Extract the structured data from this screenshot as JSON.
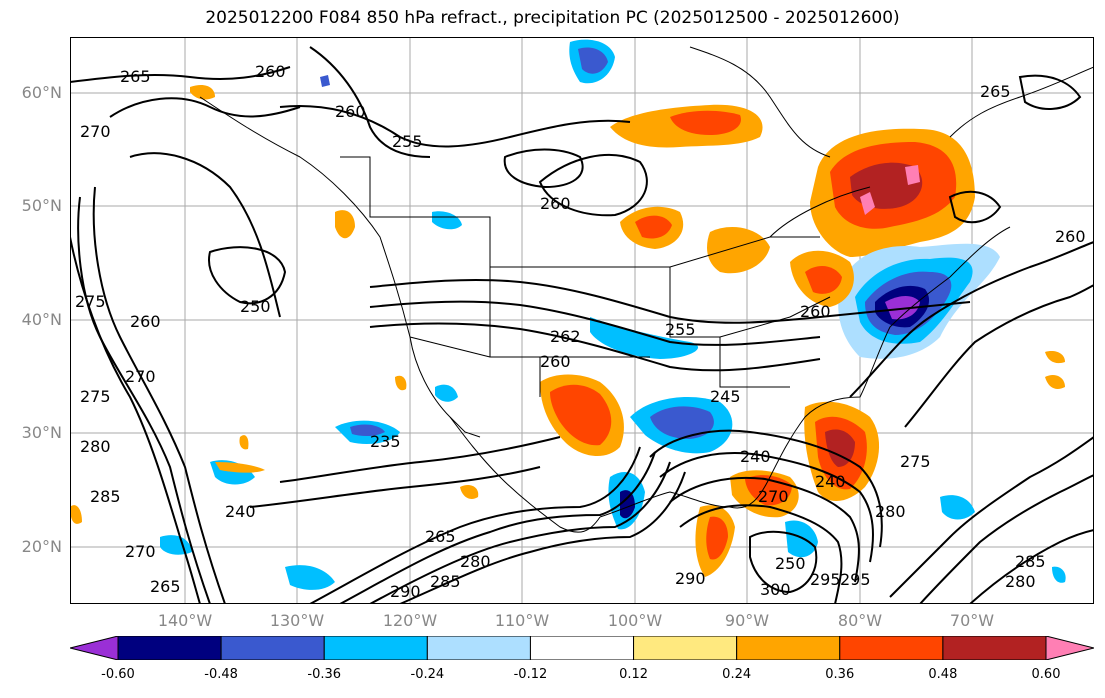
{
  "title": "2025012200 F084 850 hPa refract., precipitation PC (2025012500 - 2025012600)",
  "lat_labels": [
    "60°N",
    "50°N",
    "40°N",
    "30°N",
    "20°N"
  ],
  "lon_labels": [
    "140°W",
    "130°W",
    "120°W",
    "110°W",
    "100°W",
    "90°W",
    "80°W",
    "70°W"
  ],
  "contour_labels": [
    "265",
    "260",
    "260",
    "270",
    "255",
    "260",
    "250",
    "260",
    "265",
    "255",
    "260",
    "262",
    "260",
    "275",
    "270",
    "275",
    "280",
    "285",
    "245",
    "235",
    "240",
    "240",
    "270",
    "240",
    "275",
    "280",
    "265",
    "280",
    "285",
    "290",
    "295",
    "300",
    "290",
    "295",
    "270",
    "265",
    "285",
    "280",
    "250",
    "260"
  ],
  "colorbar": {
    "ticks": [
      "-0.60",
      "-0.48",
      "-0.36",
      "-0.24",
      "-0.12",
      "0.12",
      "0.24",
      "0.36",
      "0.48",
      "0.60"
    ],
    "colors": [
      "#9a2fd6",
      "#00007f",
      "#3a59cf",
      "#00bfff",
      "#addfff",
      "#ffffff",
      "#ffe97f",
      "#ffa500",
      "#ff4500",
      "#b22222",
      "#ff7fb4"
    ]
  }
}
